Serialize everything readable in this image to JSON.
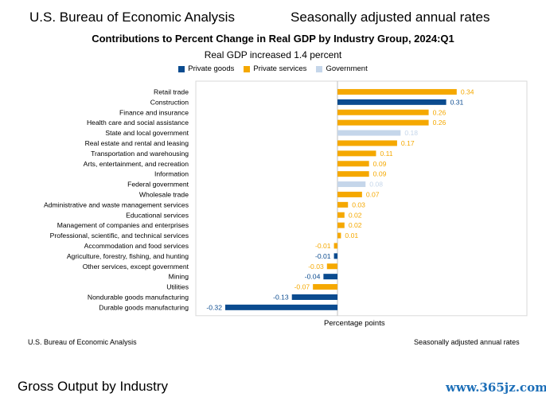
{
  "header": {
    "left": "U.S. Bureau of Economic Analysis",
    "right": "Seasonally adjusted annual rates"
  },
  "colors": {
    "private_goods": "#0b4b8f",
    "private_services": "#f5a800",
    "government": "#c5d6ea"
  },
  "chart_data": {
    "type": "bar",
    "orientation": "horizontal",
    "title": "Contributions to Percent Change in Real GDP by Industry Group, 2024:Q1",
    "subtitle": "Real GDP increased 1.4 percent",
    "xlabel": "Percentage points",
    "xlim": [
      -0.36,
      0.41
    ],
    "legend": [
      {
        "key": "private_goods",
        "label": "Private goods"
      },
      {
        "key": "private_services",
        "label": "Private services"
      },
      {
        "key": "government",
        "label": "Government"
      }
    ],
    "bars": [
      {
        "label": "Retail trade",
        "value": 0.34,
        "display": "0.34",
        "group": "private_services"
      },
      {
        "label": "Construction",
        "value": 0.31,
        "display": "0.31",
        "group": "private_goods"
      },
      {
        "label": "Finance and insurance",
        "value": 0.26,
        "display": "0.26",
        "group": "private_services"
      },
      {
        "label": "Health care and social assistance",
        "value": 0.26,
        "display": "0.26",
        "group": "private_services"
      },
      {
        "label": "State and local government",
        "value": 0.18,
        "display": "0.18",
        "group": "government"
      },
      {
        "label": "Real estate and rental and leasing",
        "value": 0.17,
        "display": "0.17",
        "group": "private_services"
      },
      {
        "label": "Transportation and warehousing",
        "value": 0.11,
        "display": "0.11",
        "group": "private_services"
      },
      {
        "label": "Arts, entertainment, and recreation",
        "value": 0.09,
        "display": "0.09",
        "group": "private_services"
      },
      {
        "label": "Information",
        "value": 0.09,
        "display": "0.09",
        "group": "private_services"
      },
      {
        "label": "Federal government",
        "value": 0.08,
        "display": "0.08",
        "group": "government"
      },
      {
        "label": "Wholesale trade",
        "value": 0.07,
        "display": "0.07",
        "group": "private_services"
      },
      {
        "label": "Administrative and waste management services",
        "value": 0.03,
        "display": "0.03",
        "group": "private_services"
      },
      {
        "label": "Educational services",
        "value": 0.02,
        "display": "0.02",
        "group": "private_services"
      },
      {
        "label": "Management of companies and enterprises",
        "value": 0.02,
        "display": "0.02",
        "group": "private_services"
      },
      {
        "label": "Professional, scientific, and technical services",
        "value": 0.01,
        "display": "0.01",
        "group": "private_services"
      },
      {
        "label": "Accommodation and food services",
        "value": -0.01,
        "display": "-0.01",
        "group": "private_services"
      },
      {
        "label": "Agriculture, forestry, fishing, and hunting",
        "value": -0.01,
        "display": "-0.01",
        "group": "private_goods"
      },
      {
        "label": "Other services, except government",
        "value": -0.03,
        "display": "-0.03",
        "group": "private_services"
      },
      {
        "label": "Mining",
        "value": -0.04,
        "display": "-0.04",
        "group": "private_goods"
      },
      {
        "label": "Utilities",
        "value": -0.07,
        "display": "-0.07",
        "group": "private_services"
      },
      {
        "label": "Nondurable goods manufacturing",
        "value": -0.13,
        "display": "-0.13",
        "group": "private_goods"
      },
      {
        "label": "Durable goods manufacturing",
        "value": -0.32,
        "display": "-0.32",
        "group": "private_goods"
      }
    ]
  },
  "footer": {
    "left": "U.S. Bureau of Economic Analysis",
    "right": "Seasonally adjusted annual rates"
  },
  "section_title": "Gross Output by Industry",
  "watermark": "www.365jz.com"
}
